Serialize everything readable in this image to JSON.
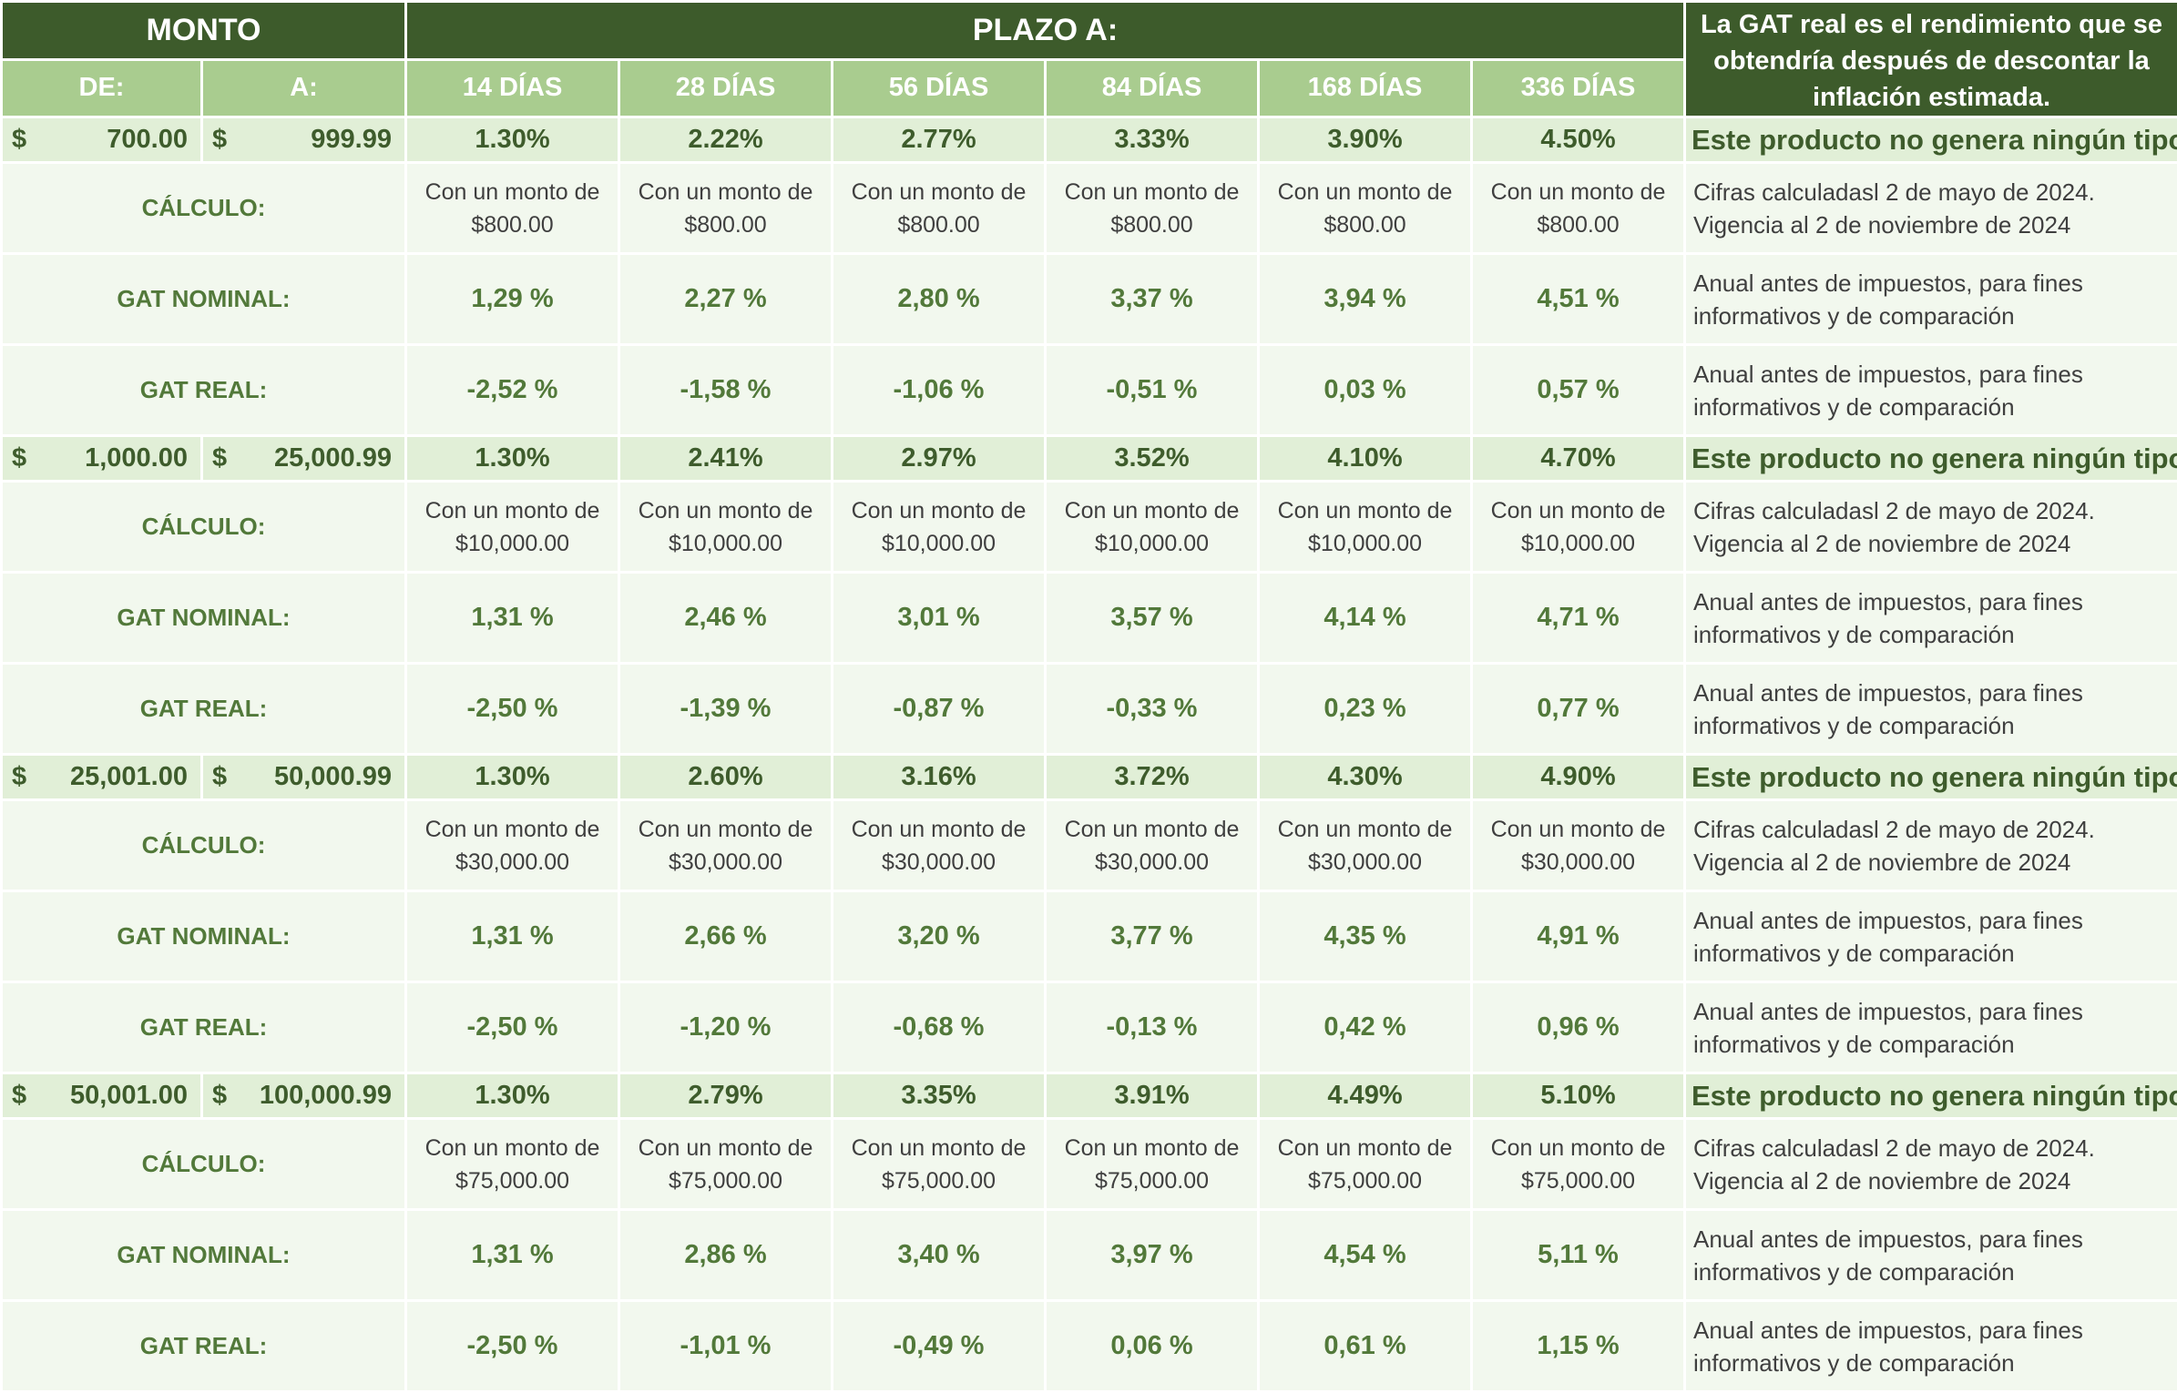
{
  "header": {
    "monto": "MONTO",
    "plazo": "PLAZO A:",
    "note": "La GAT real es el rendimiento que se obtendría después de descontar la inflación estimada.",
    "de": "DE:",
    "a": "A:",
    "terms": [
      "14 DÍAS",
      "28 DÍAS",
      "56 DÍAS",
      "84 DÍAS",
      "168 DÍAS",
      "336 DÍAS"
    ]
  },
  "labels": {
    "currency": "$",
    "calculo": "CÁLCULO:",
    "gat_nominal": "GAT NOMINAL:",
    "gat_real": "GAT REAL:",
    "product_note": "Este producto no genera ningún tipo",
    "calc_prefix": "Con un monto de",
    "calc_note_1": "Cifras calculadasl 2 de mayo de 2024.",
    "calc_note_2": "Vigencia al 2 de noviembre de 2024",
    "annual_note_1": "Anual antes de impuestos, para fines",
    "annual_note_2": "informativos y de comparación"
  },
  "groups": [
    {
      "from": "700.00",
      "to": "999.99",
      "rates": [
        "1.30%",
        "2.22%",
        "2.77%",
        "3.33%",
        "3.90%",
        "4.50%"
      ],
      "calc_amount": "$800.00",
      "gat_nominal": [
        "1,29 %",
        "2,27 %",
        "2,80 %",
        "3,37 %",
        "3,94 %",
        "4,51 %"
      ],
      "gat_real": [
        "-2,52 %",
        "-1,58 %",
        "-1,06 %",
        "-0,51 %",
        "0,03 %",
        "0,57 %"
      ]
    },
    {
      "from": "1,000.00",
      "to": "25,000.99",
      "rates": [
        "1.30%",
        "2.41%",
        "2.97%",
        "3.52%",
        "4.10%",
        "4.70%"
      ],
      "calc_amount": "$10,000.00",
      "gat_nominal": [
        "1,31 %",
        "2,46 %",
        "3,01 %",
        "3,57 %",
        "4,14 %",
        "4,71 %"
      ],
      "gat_real": [
        "-2,50 %",
        "-1,39 %",
        "-0,87 %",
        "-0,33 %",
        "0,23 %",
        "0,77 %"
      ]
    },
    {
      "from": "25,001.00",
      "to": "50,000.99",
      "rates": [
        "1.30%",
        "2.60%",
        "3.16%",
        "3.72%",
        "4.30%",
        "4.90%"
      ],
      "calc_amount": "$30,000.00",
      "gat_nominal": [
        "1,31 %",
        "2,66 %",
        "3,20 %",
        "3,77 %",
        "4,35 %",
        "4,91 %"
      ],
      "gat_real": [
        "-2,50 %",
        "-1,20 %",
        "-0,68 %",
        "-0,13 %",
        "0,42 %",
        "0,96 %"
      ]
    },
    {
      "from": "50,001.00",
      "to": "100,000.99",
      "rates": [
        "1.30%",
        "2.79%",
        "3.35%",
        "3.91%",
        "4.49%",
        "5.10%"
      ],
      "calc_amount": "$75,000.00",
      "gat_nominal": [
        "1,31 %",
        "2,86 %",
        "3,40 %",
        "3,97 %",
        "4,54 %",
        "5,11 %"
      ],
      "gat_real": [
        "-2,50 %",
        "-1,01 %",
        "-0,49 %",
        "0,06 %",
        "0,61 %",
        "1,15 %"
      ]
    }
  ],
  "colors": {
    "header_dark": "#3d5b2b",
    "header_light": "#a9cc8f",
    "band_bg": "#e1efd7",
    "sub_bg": "#f2f8ee",
    "accent_text": "#52793a"
  }
}
